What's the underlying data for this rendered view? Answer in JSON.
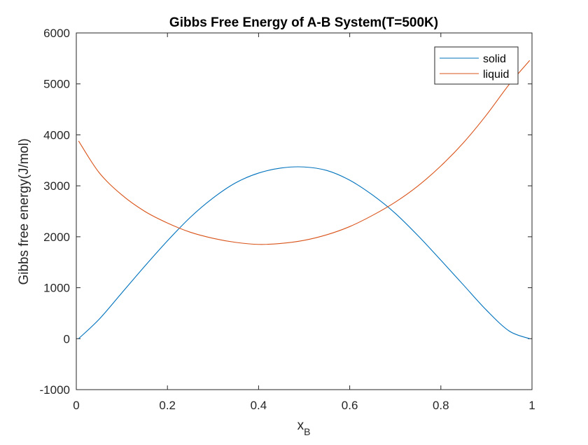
{
  "chart_data": {
    "type": "line",
    "title": "Gibbs Free Energy of A-B System(T=500K)",
    "xlabel": "x",
    "xlabel_subscript": "B",
    "ylabel": "Gibbs free energy(J/mol)",
    "xlim": [
      0,
      1
    ],
    "ylim": [
      -1000,
      6000
    ],
    "xticks": [
      0,
      0.2,
      0.4,
      0.6,
      0.8,
      1
    ],
    "xtick_labels": [
      "0",
      "0.2",
      "0.4",
      "0.6",
      "0.8",
      "1"
    ],
    "yticks": [
      -1000,
      0,
      1000,
      2000,
      3000,
      4000,
      5000,
      6000
    ],
    "ytick_labels": [
      "-1000",
      "0",
      "1000",
      "2000",
      "3000",
      "4000",
      "5000",
      "6000"
    ],
    "grid": false,
    "legend_position": "top-right",
    "x": [
      0.005,
      0.05,
      0.1,
      0.15,
      0.2,
      0.25,
      0.3,
      0.35,
      0.4,
      0.45,
      0.5,
      0.55,
      0.6,
      0.65,
      0.7,
      0.75,
      0.8,
      0.85,
      0.9,
      0.95,
      0.995
    ],
    "series": [
      {
        "name": "solid",
        "color": "#0072BD",
        "values": [
          0,
          380,
          900,
          1420,
          1920,
          2380,
          2760,
          3060,
          3250,
          3350,
          3370,
          3300,
          3110,
          2820,
          2460,
          2020,
          1540,
          1050,
          560,
          150,
          0
        ]
      },
      {
        "name": "liquid",
        "color": "#D95319",
        "values": [
          3880,
          3260,
          2820,
          2500,
          2270,
          2090,
          1970,
          1890,
          1850,
          1870,
          1930,
          2040,
          2200,
          2420,
          2680,
          3000,
          3390,
          3850,
          4390,
          4990,
          5460
        ]
      }
    ]
  }
}
